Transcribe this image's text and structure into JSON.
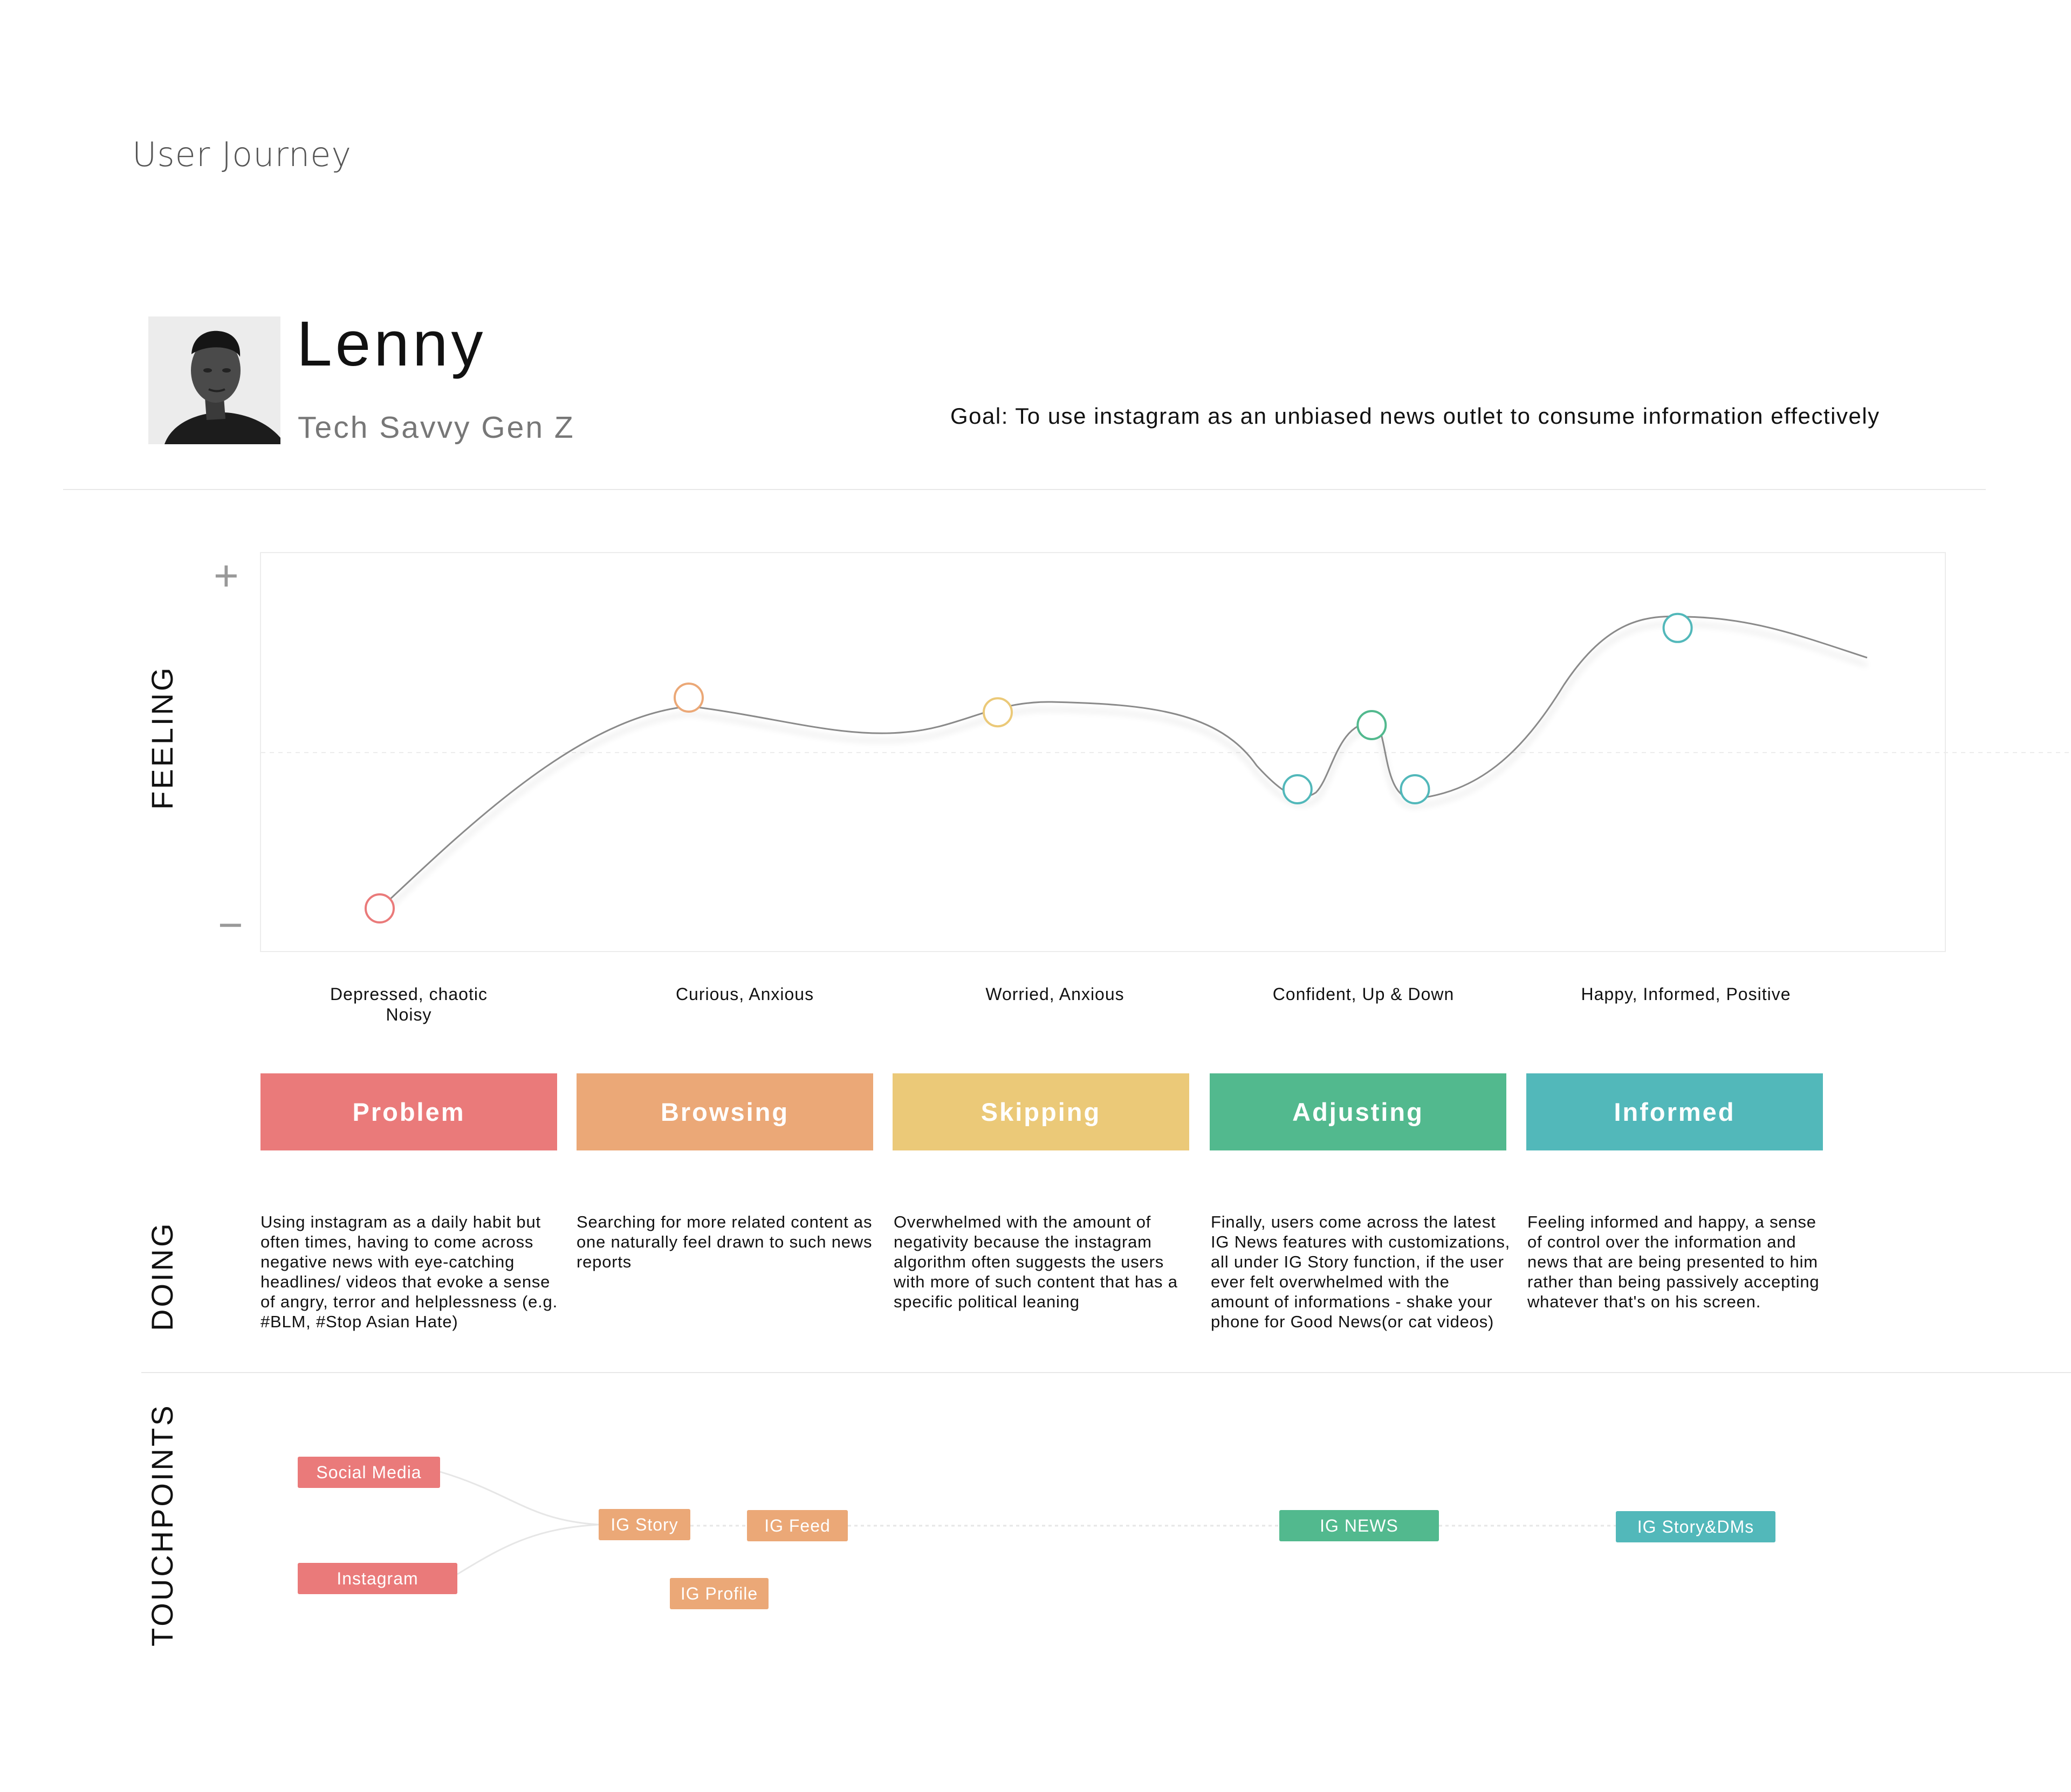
{
  "header": {
    "title": "User Journey"
  },
  "persona": {
    "name": "Lenny",
    "type": "Tech Savvy Gen Z",
    "goal": "Goal: To use instagram as an unbiased news outlet to consume information effectively"
  },
  "rows": {
    "feeling": "FEELING",
    "doing": "DOING",
    "touchpoints": "TOUCHPOINTS"
  },
  "axis": {
    "plus": "+",
    "minus": "−"
  },
  "colors": {
    "problem": "#EA7A7A",
    "browsing": "#EBA877",
    "skipping": "#EBC978",
    "adjusting": "#52B98E",
    "informed": "#52B8BA"
  },
  "feelings": [
    {
      "line1": "Depressed, chaotic",
      "line2": "Noisy"
    },
    {
      "line1": "Curious, Anxious",
      "line2": ""
    },
    {
      "line1": "Worried, Anxious",
      "line2": ""
    },
    {
      "line1": "Confident, Up & Down",
      "line2": ""
    },
    {
      "line1": "Happy, Informed, Positive",
      "line2": ""
    }
  ],
  "stages": [
    {
      "label": "Problem",
      "color": "#EA7A7A"
    },
    {
      "label": "Browsing",
      "color": "#EBA877"
    },
    {
      "label": "Skipping",
      "color": "#EBC978"
    },
    {
      "label": "Adjusting",
      "color": "#52B98E"
    },
    {
      "label": "Informed",
      "color": "#52B8BA"
    }
  ],
  "doing": [
    "Using instagram as a daily habit but often times, having to come across negative news with eye-catching headlines/ videos that evoke a sense of angry, terror and helplessness (e.g. #BLM, #Stop Asian Hate)",
    "Searching for more related content as one naturally feel drawn to such news reports",
    "Overwhelmed with the amount of negativity because the instagram algorithm often suggests the users with more of such content that has a specific political leaning",
    "Finally, users come across the latest IG News features with customizations, all under IG Story function, if the user ever felt overwhelmed with the amount of informations - shake your phone for Good News(or cat videos)",
    "Feeling informed and happy, a sense of control over the information and news that are being presented to him rather than being passively accepting whatever that's on his screen."
  ],
  "touchpoints": {
    "social_media": "Social Media",
    "instagram": "Instagram",
    "ig_story": "IG Story",
    "ig_feed": "IG Feed",
    "ig_profile": "IG Profile",
    "ig_news": "IG NEWS",
    "ig_story_dms": "IG Story&DMs"
  },
  "chart_data": {
    "type": "line",
    "title": "Feeling",
    "ylabel": "Feeling",
    "ylim": [
      -1,
      1
    ],
    "y_tick_labels": [
      "+",
      "−"
    ],
    "categories": [
      "Depressed, chaotic Noisy",
      "Curious, Anxious",
      "Worried, Anxious",
      "Confident, Up & Down",
      "Happy, Informed, Positive"
    ],
    "points": [
      {
        "stage": "Problem",
        "x": 0,
        "y": -0.85,
        "color": "#EA7A7A"
      },
      {
        "stage": "Browsing",
        "x": 1,
        "y": 0.3,
        "color": "#EBA877"
      },
      {
        "stage": "Skipping",
        "x": 2,
        "y": 0.22,
        "color": "#EBC978"
      },
      {
        "stage": "Adjusting",
        "x": 2.97,
        "y": -0.2,
        "color": "#52B8BA"
      },
      {
        "stage": "Adjusting",
        "x": 3.21,
        "y": 0.15,
        "color": "#52B98E"
      },
      {
        "stage": "Adjusting",
        "x": 3.35,
        "y": -0.2,
        "color": "#52B8BA"
      },
      {
        "stage": "Informed",
        "x": 4.2,
        "y": 0.68,
        "color": "#52B8BA"
      }
    ]
  }
}
